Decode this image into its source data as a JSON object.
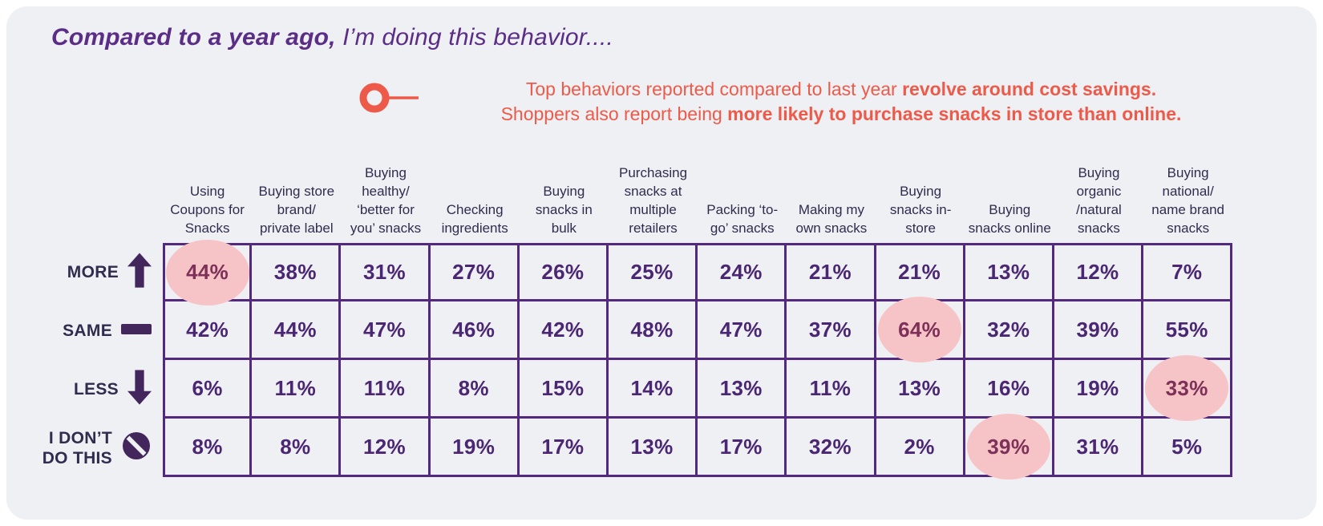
{
  "title": {
    "emphasis": "Compared to a year ago,",
    "rest": " I’m doing this behavior...."
  },
  "callout": {
    "icon": "circle-dash-icon",
    "lines": [
      {
        "segments": [
          {
            "text": "Top behaviors reported compared to last year ",
            "bold": false
          },
          {
            "text": "revolve around cost savings.",
            "bold": true
          }
        ]
      },
      {
        "segments": [
          {
            "text": "Shoppers also report being ",
            "bold": false
          },
          {
            "text": "more likely to purchase snacks in store than online.",
            "bold": true
          }
        ]
      }
    ]
  },
  "table": {
    "columns": [
      "Using Coupons for Snacks",
      "Buying store brand/ private label",
      "Buying healthy/ ‘better for you’ snacks",
      "Checking ingredients",
      "Buying snacks in bulk",
      "Purchasing snacks at multiple retailers",
      "Packing ‘to-go’ snacks",
      "Making my own snacks",
      "Buying snacks in-store",
      "Buying snacks online",
      "Buying organic /natural snacks",
      "Buying national/ name brand snacks"
    ],
    "rows": [
      {
        "label": "MORE",
        "icon": "arrow-up-icon",
        "values": [
          "44%",
          "38%",
          "31%",
          "27%",
          "26%",
          "25%",
          "24%",
          "21%",
          "21%",
          "13%",
          "12%",
          "7%"
        ],
        "highlights": [
          0
        ]
      },
      {
        "label": "SAME",
        "icon": "dash-icon",
        "values": [
          "42%",
          "44%",
          "47%",
          "46%",
          "42%",
          "48%",
          "47%",
          "37%",
          "64%",
          "32%",
          "39%",
          "55%"
        ],
        "highlights": [
          8
        ]
      },
      {
        "label": "LESS",
        "icon": "arrow-down-icon",
        "values": [
          "6%",
          "11%",
          "11%",
          "8%",
          "15%",
          "14%",
          "13%",
          "11%",
          "13%",
          "16%",
          "19%",
          "33%"
        ],
        "highlights": [
          11
        ]
      },
      {
        "label": "I DON’T DO THIS",
        "icon": "no-entry-icon",
        "values": [
          "8%",
          "8%",
          "12%",
          "19%",
          "17%",
          "13%",
          "17%",
          "32%",
          "2%",
          "39%",
          "31%",
          "5%"
        ],
        "highlights": [
          9
        ]
      }
    ]
  },
  "colors": {
    "card_background": "#eef0f4",
    "title_purple": "#5b2d87",
    "callout_coral": "#ee5a49",
    "header_navy": "#2f2c4e",
    "value_purple": "#4b2673",
    "grid_border_purple": "#52297e",
    "highlight_pink": "#f6c4c6",
    "highlight_text": "#7d3058"
  },
  "chart_data": {
    "type": "table",
    "title": "Compared to a year ago, I’m doing this behavior....",
    "unit": "%",
    "categories": [
      "Using Coupons for Snacks",
      "Buying store brand/private label",
      "Buying healthy/‘better for you’ snacks",
      "Checking ingredients",
      "Buying snacks in bulk",
      "Purchasing snacks at multiple retailers",
      "Packing ‘to-go’ snacks",
      "Making my own snacks",
      "Buying snacks in-store",
      "Buying snacks online",
      "Buying organic/natural snacks",
      "Buying national/name brand snacks"
    ],
    "series": [
      {
        "name": "MORE",
        "values": [
          44,
          38,
          31,
          27,
          26,
          25,
          24,
          21,
          21,
          13,
          12,
          7
        ]
      },
      {
        "name": "SAME",
        "values": [
          42,
          44,
          47,
          46,
          42,
          48,
          47,
          37,
          64,
          32,
          39,
          55
        ]
      },
      {
        "name": "LESS",
        "values": [
          6,
          11,
          11,
          8,
          15,
          14,
          13,
          11,
          13,
          16,
          19,
          33
        ]
      },
      {
        "name": "I DON’T DO THIS",
        "values": [
          8,
          8,
          12,
          19,
          17,
          13,
          17,
          32,
          2,
          39,
          31,
          5
        ]
      }
    ],
    "highlighted_cells": [
      {
        "row": "MORE",
        "category": "Using Coupons for Snacks",
        "value": 44
      },
      {
        "row": "SAME",
        "category": "Buying snacks in-store",
        "value": 64
      },
      {
        "row": "LESS",
        "category": "Buying national/name brand snacks",
        "value": 33
      },
      {
        "row": "I DON’T DO THIS",
        "category": "Buying snacks online",
        "value": 39
      }
    ],
    "annotation": "Top behaviors reported compared to last year revolve around cost savings. Shoppers also report being more likely to purchase snacks in store than online."
  }
}
